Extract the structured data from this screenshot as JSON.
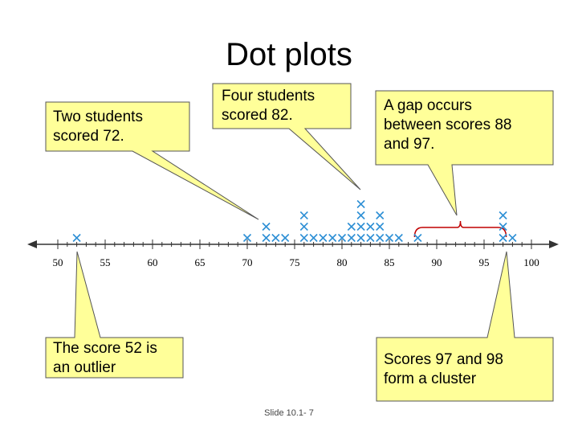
{
  "slide": {
    "title": "Dot plots",
    "footer": "Slide 10.1- 7"
  },
  "colors": {
    "marker": "#2d8fd5",
    "callout_fill": "#ffff99",
    "axis": "#333333",
    "brace": "#c00000"
  },
  "callouts": {
    "two_students": {
      "lines": [
        "Two students",
        "scored 72."
      ]
    },
    "four_students": {
      "lines": [
        "Four students",
        "scored 82."
      ]
    },
    "gap": {
      "lines": [
        "A gap occurs",
        "between scores 88",
        "and 97."
      ]
    },
    "outlier": {
      "lines": [
        "The score 52 is",
        "an outlier"
      ]
    },
    "cluster": {
      "lines": [
        "Scores 97 and 98",
        "form a cluster"
      ]
    }
  },
  "chart_data": {
    "type": "scatter",
    "marker": "x",
    "xlim": [
      50,
      100
    ],
    "major_ticks": [
      "50",
      "55",
      "60",
      "65",
      "70",
      "75",
      "80",
      "85",
      "90",
      "95",
      "100"
    ],
    "minor_tick_step": 1,
    "points": [
      {
        "x": 52,
        "count": 1
      },
      {
        "x": 70,
        "count": 1
      },
      {
        "x": 72,
        "count": 2
      },
      {
        "x": 73,
        "count": 1
      },
      {
        "x": 74,
        "count": 1
      },
      {
        "x": 76,
        "count": 3
      },
      {
        "x": 77,
        "count": 1
      },
      {
        "x": 78,
        "count": 1
      },
      {
        "x": 79,
        "count": 1
      },
      {
        "x": 80,
        "count": 1
      },
      {
        "x": 81,
        "count": 2
      },
      {
        "x": 82,
        "count": 4
      },
      {
        "x": 83,
        "count": 2
      },
      {
        "x": 84,
        "count": 3
      },
      {
        "x": 85,
        "count": 1
      },
      {
        "x": 86,
        "count": 1
      },
      {
        "x": 88,
        "count": 1
      },
      {
        "x": 97,
        "count": 3
      },
      {
        "x": 98,
        "count": 1
      }
    ],
    "annotations": [
      {
        "type": "brace",
        "from": 88,
        "to": 97
      }
    ]
  }
}
